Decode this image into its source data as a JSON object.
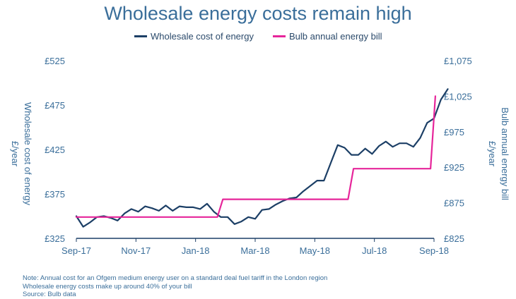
{
  "chart_data": {
    "type": "line",
    "title": "Wholesale energy costs remain high",
    "legend": {
      "placement": "top-center"
    },
    "x_ticks": [
      "Sep-17",
      "Nov-17",
      "Jan-18",
      "Mar-18",
      "May-18",
      "Jul-18",
      "Sep-18"
    ],
    "x_range_weeks": [
      0,
      52
    ],
    "y_left": {
      "label_line1": "Wholesale cost of energy",
      "label_line2": "£/year",
      "ticks": [
        "£325",
        "£375",
        "£425",
        "£475",
        "£525"
      ],
      "range": [
        325,
        525
      ]
    },
    "y_right": {
      "label_line1": "Bulb annual energy bill",
      "label_line2": "£/year",
      "ticks": [
        "£825",
        "£875",
        "£925",
        "£975",
        "£1,025",
        "£1,075"
      ],
      "range": [
        825,
        1075
      ]
    },
    "series": [
      {
        "name": "Wholesale cost of energy",
        "axis": "left",
        "color": "#1c3f66",
        "points": [
          [
            0,
            350
          ],
          [
            1,
            338
          ],
          [
            2,
            343
          ],
          [
            3,
            349
          ],
          [
            4,
            350
          ],
          [
            5,
            348
          ],
          [
            6,
            345
          ],
          [
            7,
            353
          ],
          [
            8,
            358
          ],
          [
            9,
            355
          ],
          [
            10,
            361
          ],
          [
            11,
            359
          ],
          [
            12,
            356
          ],
          [
            13,
            362
          ],
          [
            14,
            356
          ],
          [
            15,
            361
          ],
          [
            16,
            360
          ],
          [
            17,
            360
          ],
          [
            18,
            358
          ],
          [
            19,
            364
          ],
          [
            20,
            355
          ],
          [
            21,
            349
          ],
          [
            22,
            349
          ],
          [
            23,
            341
          ],
          [
            24,
            344
          ],
          [
            25,
            349
          ],
          [
            26,
            347
          ],
          [
            27,
            357
          ],
          [
            28,
            358
          ],
          [
            29,
            363
          ],
          [
            30,
            367
          ],
          [
            31,
            370
          ],
          [
            32,
            371
          ],
          [
            33,
            378
          ],
          [
            34,
            384
          ],
          [
            35,
            390
          ],
          [
            36,
            390
          ],
          [
            37,
            410
          ],
          [
            38,
            430
          ],
          [
            39,
            427
          ],
          [
            40,
            419
          ],
          [
            41,
            419
          ],
          [
            42,
            426
          ],
          [
            43,
            420
          ],
          [
            44,
            429
          ],
          [
            45,
            434
          ],
          [
            46,
            428
          ],
          [
            47,
            432
          ],
          [
            48,
            432
          ],
          [
            49,
            428
          ],
          [
            50,
            438
          ],
          [
            51,
            455
          ],
          [
            52,
            460
          ],
          [
            53,
            481
          ],
          [
            54,
            493
          ]
        ]
      },
      {
        "name": "Bulb annual energy bill",
        "axis": "right",
        "color": "#e6259a",
        "points": [
          [
            0,
            855
          ],
          [
            20.5,
            855
          ],
          [
            21.3,
            880
          ],
          [
            39.5,
            880
          ],
          [
            40.3,
            923
          ],
          [
            51.5,
            923
          ],
          [
            52.2,
            1025
          ]
        ]
      }
    ],
    "notes": [
      "Note: Annual cost for an Ofgem medium energy user on a standard deal fuel tariff in the London region",
      "Wholesale energy costs make up around 40% of your bill",
      "Source: Bulb data"
    ]
  }
}
